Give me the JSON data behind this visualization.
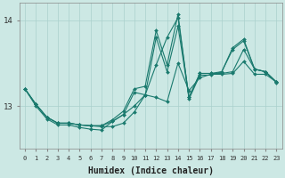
{
  "bg_color": "#cce8e4",
  "grid_color": "#aad0cc",
  "line_color": "#1a7a6e",
  "marker": "D",
  "markersize": 2.0,
  "linewidth": 0.8,
  "xlabel": "Humidex (Indice chaleur)",
  "xlabel_fontsize": 7,
  "ytick_labels": [
    "13",
    "14"
  ],
  "ytick_values": [
    13,
    14
  ],
  "ylim": [
    12.5,
    14.2
  ],
  "xlim": [
    -0.5,
    23.5
  ],
  "xtick_values": [
    0,
    1,
    2,
    3,
    4,
    5,
    6,
    7,
    8,
    9,
    10,
    11,
    12,
    13,
    14,
    15,
    16,
    17,
    18,
    19,
    20,
    21,
    22,
    23
  ],
  "series": [
    [
      13.2,
      13.0,
      12.85,
      12.78,
      12.78,
      12.75,
      12.73,
      12.72,
      12.82,
      12.9,
      13.0,
      13.13,
      13.1,
      13.05,
      13.5,
      13.18,
      13.33,
      13.37,
      13.37,
      13.38,
      13.52,
      13.37,
      13.37,
      13.28
    ],
    [
      13.2,
      13.02,
      12.87,
      12.8,
      12.8,
      12.78,
      12.77,
      12.76,
      12.76,
      12.8,
      12.93,
      13.13,
      13.48,
      13.8,
      14.03,
      13.1,
      13.38,
      13.38,
      13.38,
      13.4,
      13.66,
      13.43,
      13.4,
      13.28
    ],
    [
      13.2,
      13.02,
      12.87,
      12.8,
      12.8,
      12.78,
      12.77,
      12.77,
      12.82,
      12.9,
      13.16,
      13.13,
      13.8,
      13.4,
      13.93,
      13.1,
      13.38,
      13.38,
      13.4,
      13.66,
      13.76,
      13.43,
      13.4,
      13.28
    ],
    [
      13.2,
      13.02,
      12.87,
      12.8,
      12.8,
      12.78,
      12.77,
      12.77,
      12.84,
      12.94,
      13.2,
      13.23,
      13.88,
      13.48,
      14.07,
      13.08,
      13.36,
      13.36,
      13.4,
      13.68,
      13.78,
      13.43,
      13.4,
      13.27
    ]
  ]
}
